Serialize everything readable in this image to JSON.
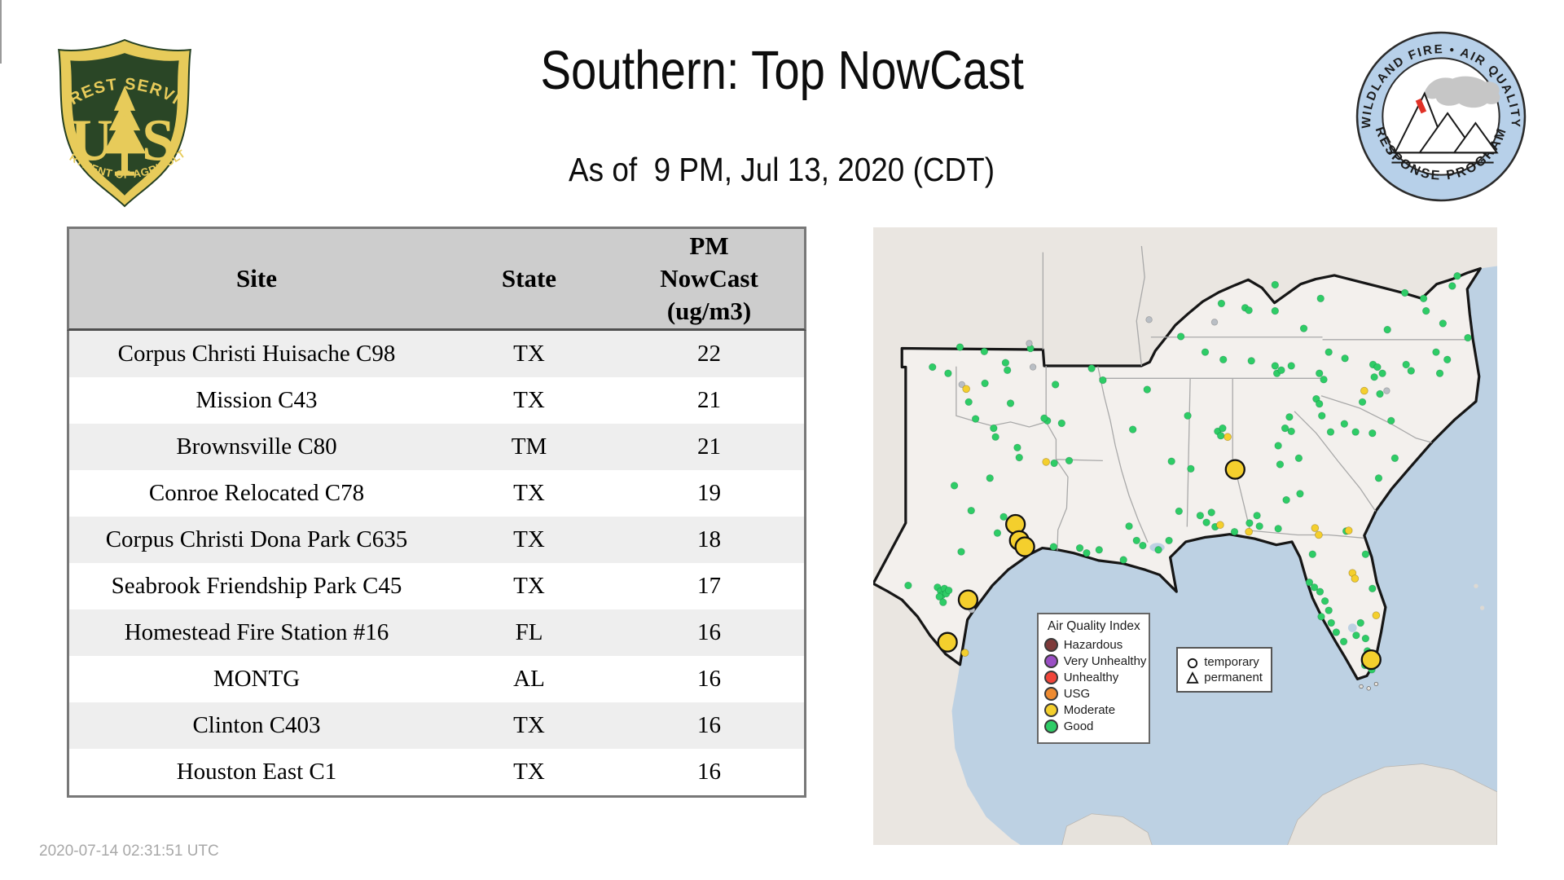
{
  "page": {
    "title": "Southern: Top NowCast",
    "subtitle": "As of  9 PM, Jul 13, 2020 (CDT)",
    "footer_timestamp": "2020-07-14 02:31:51 UTC"
  },
  "logos": {
    "forest_service": {
      "top_text": "FOREST SERVICE",
      "letter_u": "U",
      "letter_s": "S",
      "bottom_text": "DEPARTMENT OF AGRICULTURE",
      "shield_green": "#2a4626",
      "gold": "#e7cb5a"
    },
    "wfaqrp": {
      "top_text": "WILDLAND FIRE • AIR QUALITY",
      "bottom_text": "RESPONSE PROGRAM",
      "ring_blue": "#b7d0e9",
      "flame_red": "#e03127",
      "smoke_grey": "#c6c6c6"
    }
  },
  "table": {
    "columns": [
      "Site",
      "State",
      "PM NowCast (ug/m3)"
    ],
    "rows": [
      {
        "site": "Corpus Christi Huisache C98",
        "state": "TX",
        "value": "22"
      },
      {
        "site": "Mission C43",
        "state": "TX",
        "value": "21"
      },
      {
        "site": "Brownsville C80",
        "state": "TM",
        "value": "21"
      },
      {
        "site": "Conroe Relocated C78",
        "state": "TX",
        "value": "19"
      },
      {
        "site": "Corpus Christi Dona Park C635",
        "state": "TX",
        "value": "18"
      },
      {
        "site": "Seabrook Friendship Park C45",
        "state": "TX",
        "value": "17"
      },
      {
        "site": "Homestead Fire Station #16",
        "state": "FL",
        "value": "16"
      },
      {
        "site": "MONTG",
        "state": "AL",
        "value": "16"
      },
      {
        "site": "Clinton C403",
        "state": "TX",
        "value": "16"
      },
      {
        "site": "Houston East C1",
        "state": "TX",
        "value": "16"
      }
    ]
  },
  "map": {
    "legend": {
      "title": "Air Quality Index",
      "items": [
        {
          "label": "Hazardous",
          "color": "#7e3a3a"
        },
        {
          "label": "Very Unhealthy",
          "color": "#9a4fc4"
        },
        {
          "label": "Unhealthy",
          "color": "#f0453a"
        },
        {
          "label": "USG",
          "color": "#ee8b31"
        },
        {
          "label": "Moderate",
          "color": "#f4cf2d"
        },
        {
          "label": "Good",
          "color": "#2ecc66"
        }
      ]
    },
    "marker_legend": {
      "temporary": "temporary",
      "permanent": "permanent"
    },
    "colors": {
      "good": "#2ecc66",
      "moderate": "#f4cf2d",
      "no_data": "#b9bec4",
      "water": "#bdd1e3",
      "land_outside": "#eae6e1",
      "land_region": "#f3f0ed"
    },
    "markers": {
      "large_moderate": [
        [
          22.8,
          47.6
        ],
        [
          23.4,
          50.2
        ],
        [
          24.3,
          51.2
        ],
        [
          15.2,
          59.7
        ],
        [
          11.9,
          66.5
        ],
        [
          58.0,
          38.8
        ],
        [
          79.8,
          69.3
        ]
      ],
      "small_moderate": [
        [
          14.9,
          25.9
        ],
        [
          27.7,
          37.6
        ],
        [
          55.6,
          47.7
        ],
        [
          60.2,
          48.8
        ],
        [
          70.8,
          48.2
        ],
        [
          71.4,
          49.3
        ],
        [
          76.2,
          48.6
        ],
        [
          76.8,
          55.4
        ],
        [
          77.2,
          56.3
        ],
        [
          80.6,
          62.2
        ],
        [
          78.7,
          26.2
        ],
        [
          56.8,
          33.6
        ],
        [
          14.7,
          68.2
        ]
      ],
      "no_data": [
        [
          25.0,
          18.6
        ],
        [
          25.6,
          22.4
        ],
        [
          14.2,
          25.2
        ],
        [
          15.8,
          61.3
        ],
        [
          54.7,
          15.2
        ],
        [
          82.3,
          26.2
        ],
        [
          44.2,
          14.8
        ]
      ],
      "good": [
        [
          9.5,
          22.4
        ],
        [
          12.0,
          23.4
        ],
        [
          13.9,
          19.2
        ],
        [
          17.8,
          19.9
        ],
        [
          21.2,
          21.7
        ],
        [
          21.5,
          22.9
        ],
        [
          25.2,
          19.4
        ],
        [
          17.9,
          25.0
        ],
        [
          22.0,
          28.2
        ],
        [
          15.3,
          28.0
        ],
        [
          16.4,
          30.7
        ],
        [
          19.3,
          32.2
        ],
        [
          19.6,
          33.6
        ],
        [
          23.1,
          35.3
        ],
        [
          23.4,
          36.9
        ],
        [
          18.7,
          40.2
        ],
        [
          27.9,
          31.0
        ],
        [
          13.0,
          41.4
        ],
        [
          15.7,
          45.4
        ],
        [
          20.9,
          46.4
        ],
        [
          19.9,
          49.0
        ],
        [
          14.1,
          52.0
        ],
        [
          5.6,
          57.4
        ],
        [
          10.3,
          57.7
        ],
        [
          10.8,
          58.3
        ],
        [
          11.4,
          57.9
        ],
        [
          11.0,
          59.0
        ],
        [
          11.7,
          58.7
        ],
        [
          10.6,
          59.2
        ],
        [
          12.1,
          58.2
        ],
        [
          11.2,
          60.1
        ],
        [
          30.2,
          31.4
        ],
        [
          27.4,
          30.6
        ],
        [
          35.0,
          22.6
        ],
        [
          29.2,
          25.2
        ],
        [
          31.4,
          37.4
        ],
        [
          29.0,
          37.8
        ],
        [
          36.8,
          24.5
        ],
        [
          28.9,
          51.2
        ],
        [
          33.1,
          51.4
        ],
        [
          34.2,
          52.2
        ],
        [
          36.2,
          51.7
        ],
        [
          40.1,
          53.3
        ],
        [
          42.2,
          50.2
        ],
        [
          43.2,
          51.0
        ],
        [
          45.7,
          51.7
        ],
        [
          47.4,
          50.2
        ],
        [
          41.0,
          47.9
        ],
        [
          41.6,
          32.4
        ],
        [
          47.8,
          37.5
        ],
        [
          50.4,
          30.2
        ],
        [
          49.0,
          45.5
        ],
        [
          43.9,
          26.0
        ],
        [
          53.2,
          20.0
        ],
        [
          56.1,
          21.2
        ],
        [
          60.6,
          21.4
        ],
        [
          64.4,
          22.2
        ],
        [
          64.7,
          23.4
        ],
        [
          65.4,
          22.9
        ],
        [
          67.0,
          22.2
        ],
        [
          71.5,
          23.4
        ],
        [
          72.2,
          24.4
        ],
        [
          69.0,
          16.2
        ],
        [
          49.3,
          17.5
        ],
        [
          59.6,
          12.9
        ],
        [
          60.2,
          13.3
        ],
        [
          64.4,
          13.4
        ],
        [
          64.4,
          9.2
        ],
        [
          71.7,
          11.4
        ],
        [
          55.8,
          12.2
        ],
        [
          82.4,
          16.4
        ],
        [
          85.2,
          10.5
        ],
        [
          88.2,
          11.4
        ],
        [
          88.6,
          13.4
        ],
        [
          91.3,
          15.4
        ],
        [
          92.8,
          9.4
        ],
        [
          93.6,
          7.8
        ],
        [
          95.3,
          17.7
        ],
        [
          73.0,
          20.0
        ],
        [
          75.6,
          21.0
        ],
        [
          78.4,
          28.0
        ],
        [
          80.1,
          22.0
        ],
        [
          80.8,
          22.4
        ],
        [
          81.6,
          23.4
        ],
        [
          80.3,
          24.0
        ],
        [
          81.2,
          26.7
        ],
        [
          85.4,
          22.0
        ],
        [
          86.2,
          23.0
        ],
        [
          90.2,
          20.0
        ],
        [
          90.8,
          23.4
        ],
        [
          92.0,
          21.2
        ],
        [
          71.0,
          27.5
        ],
        [
          71.5,
          28.3
        ],
        [
          73.3,
          32.8
        ],
        [
          75.5,
          31.5
        ],
        [
          77.3,
          32.8
        ],
        [
          80.0,
          33.0
        ],
        [
          83.0,
          31.0
        ],
        [
          83.6,
          37.0
        ],
        [
          64.9,
          35.0
        ],
        [
          66.0,
          32.2
        ],
        [
          66.7,
          30.4
        ],
        [
          67.0,
          32.7
        ],
        [
          68.2,
          37.0
        ],
        [
          65.2,
          38.0
        ],
        [
          68.4,
          42.7
        ],
        [
          66.2,
          43.7
        ],
        [
          61.5,
          46.2
        ],
        [
          60.3,
          47.4
        ],
        [
          71.9,
          30.2
        ],
        [
          81.0,
          40.2
        ],
        [
          50.9,
          38.7
        ],
        [
          55.2,
          32.7
        ],
        [
          55.7,
          33.4
        ],
        [
          56.0,
          32.2
        ],
        [
          54.2,
          45.7
        ],
        [
          52.4,
          46.2
        ],
        [
          53.4,
          47.3
        ],
        [
          54.8,
          48.0
        ],
        [
          57.9,
          48.8
        ],
        [
          61.9,
          47.9
        ],
        [
          64.9,
          48.3
        ],
        [
          70.4,
          52.4
        ],
        [
          69.9,
          56.9
        ],
        [
          70.7,
          57.7
        ],
        [
          71.6,
          58.4
        ],
        [
          72.4,
          59.9
        ],
        [
          73.0,
          61.4
        ],
        [
          71.8,
          62.4
        ],
        [
          73.4,
          63.4
        ],
        [
          74.2,
          64.9
        ],
        [
          75.4,
          66.4
        ],
        [
          77.4,
          65.4
        ],
        [
          78.9,
          65.9
        ],
        [
          78.1,
          63.4
        ],
        [
          75.8,
          48.7
        ],
        [
          78.9,
          52.4
        ],
        [
          80.0,
          57.9
        ],
        [
          79.2,
          67.9
        ],
        [
          80.1,
          68.7
        ],
        [
          79.4,
          69.4
        ],
        [
          78.8,
          70.2
        ],
        [
          79.9,
          70.9
        ]
      ]
    }
  }
}
